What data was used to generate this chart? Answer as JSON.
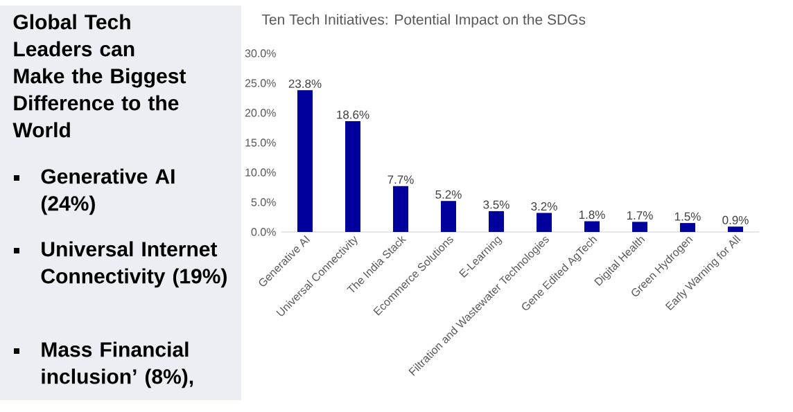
{
  "chart_data": {
    "type": "bar",
    "title": "Ten Tech Initiatives: Potential Impact on the SDGs",
    "categories": [
      "Generative AI",
      "Universal Connectivity",
      "The India Stack",
      "Ecommerce Solutions",
      "E-Learning",
      "Filtration and Wastewater Technologies",
      "Gene Edited AgTech",
      "Digital Health",
      "Green Hydrogen",
      "Early Warning for All"
    ],
    "values": [
      23.8,
      18.6,
      7.7,
      5.2,
      3.5,
      3.2,
      1.8,
      1.7,
      1.5,
      0.9
    ],
    "value_labels": [
      "23.8%",
      "18.6%",
      "7.7%",
      "5.2%",
      "3.5%",
      "3.2%",
      "1.8%",
      "1.7%",
      "1.5%",
      "0.9%"
    ],
    "color": "#00009c",
    "ylim": [
      0,
      30
    ],
    "yticks": [
      {
        "value": 0,
        "label": "0.0%"
      },
      {
        "value": 5,
        "label": "5.0%"
      },
      {
        "value": 10,
        "label": "10.0%"
      },
      {
        "value": 15,
        "label": "15.0%"
      },
      {
        "value": 20,
        "label": "20.0%"
      },
      {
        "value": 25,
        "label": "25.0%"
      },
      {
        "value": 30,
        "label": "30.0%"
      }
    ],
    "annotations": [
      "Global Tech Leaders can Make the Biggest Difference to the World",
      "Generative AI (24%)",
      "Universal Internet Connectivity (19%)",
      "Mass Financial inclusion’ (8%),"
    ]
  }
}
